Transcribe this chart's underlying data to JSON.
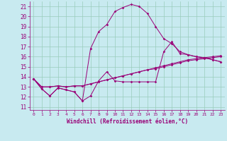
{
  "xlabel": "Windchill (Refroidissement éolien,°C)",
  "bg_color": "#c8eaf0",
  "line_color": "#990077",
  "grid_color": "#99ccbb",
  "xlim": [
    -0.5,
    23.5
  ],
  "ylim": [
    10.7,
    21.5
  ],
  "yticks": [
    11,
    12,
    13,
    14,
    15,
    16,
    17,
    18,
    19,
    20,
    21
  ],
  "xticks": [
    0,
    1,
    2,
    3,
    4,
    5,
    6,
    7,
    8,
    9,
    10,
    11,
    12,
    13,
    14,
    15,
    16,
    17,
    18,
    19,
    20,
    21,
    22,
    23
  ],
  "series": [
    [
      13.8,
      12.8,
      12.1,
      12.9,
      12.7,
      12.5,
      11.6,
      12.1,
      13.6,
      14.5,
      13.6,
      13.5,
      13.5,
      13.5,
      13.5,
      13.5,
      16.5,
      17.5,
      16.3,
      16.2,
      16.0,
      15.9,
      15.7,
      15.5
    ],
    [
      13.8,
      12.8,
      12.1,
      12.9,
      12.7,
      12.5,
      11.6,
      16.8,
      18.5,
      19.2,
      20.5,
      20.9,
      21.2,
      21.0,
      20.3,
      19.0,
      17.8,
      17.3,
      16.5,
      16.2,
      16.0,
      15.9,
      15.7,
      15.5
    ],
    [
      13.8,
      13.0,
      13.0,
      13.1,
      13.0,
      13.1,
      13.1,
      13.3,
      13.5,
      13.7,
      13.9,
      14.1,
      14.3,
      14.5,
      14.7,
      14.8,
      15.0,
      15.2,
      15.4,
      15.6,
      15.7,
      15.8,
      15.9,
      16.0
    ],
    [
      13.8,
      13.0,
      13.0,
      13.1,
      13.0,
      13.1,
      13.1,
      13.3,
      13.5,
      13.7,
      13.9,
      14.1,
      14.3,
      14.5,
      14.7,
      14.9,
      15.1,
      15.3,
      15.5,
      15.7,
      15.8,
      15.9,
      16.0,
      16.1
    ]
  ]
}
